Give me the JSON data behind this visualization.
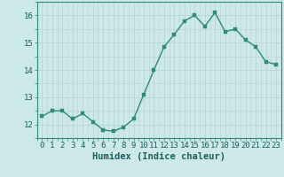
{
  "x": [
    0,
    1,
    2,
    3,
    4,
    5,
    6,
    7,
    8,
    9,
    10,
    11,
    12,
    13,
    14,
    15,
    16,
    17,
    18,
    19,
    20,
    21,
    22,
    23
  ],
  "y": [
    12.3,
    12.5,
    12.5,
    12.2,
    12.4,
    12.1,
    11.8,
    11.75,
    11.9,
    12.2,
    13.1,
    14.0,
    14.85,
    15.3,
    15.8,
    16.0,
    15.6,
    16.1,
    15.4,
    15.5,
    15.1,
    14.85,
    14.3,
    14.2
  ],
  "line_color": "#2e8b74",
  "marker_color": "#2e8b74",
  "bg_color": "#cce8e8",
  "grid_color": "#b8d4d4",
  "xlabel": "Humidex (Indice chaleur)",
  "ylim": [
    11.5,
    16.5
  ],
  "xlim": [
    -0.5,
    23.5
  ],
  "yticks": [
    12,
    13,
    14,
    15,
    16
  ],
  "xticks": [
    0,
    1,
    2,
    3,
    4,
    5,
    6,
    7,
    8,
    9,
    10,
    11,
    12,
    13,
    14,
    15,
    16,
    17,
    18,
    19,
    20,
    21,
    22,
    23
  ],
  "tick_label_color": "#1a5f5f",
  "xlabel_color": "#1a5f5f",
  "xlabel_fontsize": 7.5,
  "tick_fontsize": 6.5,
  "line_width": 1.0,
  "marker_size": 2.5
}
